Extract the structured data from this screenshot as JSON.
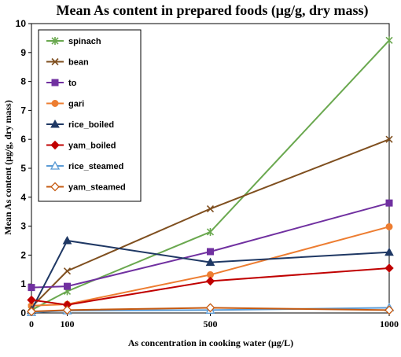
{
  "chart_data": {
    "type": "line",
    "title": "Mean As content in prepared foods (μg/g, dry mass)",
    "xlabel": "As concentration in cooking water (μg/L)",
    "ylabel": "Mean As content (μg/g, dry mass)",
    "x": [
      0,
      100,
      500,
      1000
    ],
    "x_ticks": [
      "0",
      "100",
      "500",
      "1000"
    ],
    "ylim": [
      0,
      10
    ],
    "y_ticks": [
      "0",
      "1",
      "2",
      "3",
      "4",
      "5",
      "6",
      "7",
      "8",
      "9",
      "10"
    ],
    "grid": false,
    "legend_position": "top-left",
    "series": [
      {
        "name": "spinach",
        "values": [
          0.1,
          0.75,
          2.8,
          9.42
        ],
        "color": "#6aa84f",
        "marker": "star"
      },
      {
        "name": "bean",
        "values": [
          0.2,
          1.45,
          3.6,
          6.0
        ],
        "color": "#7f4f1f",
        "marker": "x"
      },
      {
        "name": "to",
        "values": [
          0.88,
          0.92,
          2.12,
          3.8
        ],
        "color": "#7030a0",
        "marker": "square"
      },
      {
        "name": "gari",
        "values": [
          0.25,
          0.3,
          1.32,
          2.98
        ],
        "color": "#ed7d31",
        "marker": "circle"
      },
      {
        "name": "rice_boiled",
        "values": [
          0.1,
          2.5,
          1.75,
          2.1
        ],
        "color": "#1f3864",
        "marker": "triangle"
      },
      {
        "name": "yam_boiled",
        "values": [
          0.45,
          0.28,
          1.1,
          1.55
        ],
        "color": "#c00000",
        "marker": "diamond"
      },
      {
        "name": "rice_steamed",
        "values": [
          0.02,
          0.08,
          0.1,
          0.18
        ],
        "color": "#5b9bd5",
        "marker": "triangle-open"
      },
      {
        "name": "yam_steamed",
        "values": [
          0.05,
          0.1,
          0.18,
          0.1
        ],
        "color": "#c55a11",
        "marker": "diamond-open"
      }
    ]
  }
}
